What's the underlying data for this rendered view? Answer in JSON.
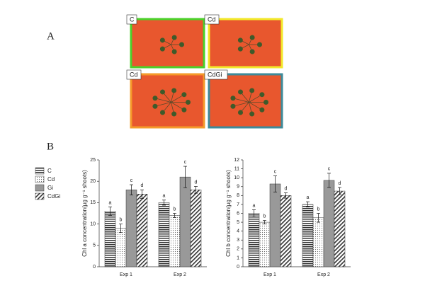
{
  "panels": [
    "A",
    "B"
  ],
  "photos": [
    {
      "label": "C",
      "border": "#4bd12a"
    },
    {
      "label": "Cd",
      "border": "#f2e82a"
    },
    {
      "label": "Cd",
      "border": "#f59a2a"
    },
    {
      "label": "CdGi",
      "border": "#3d8a9a"
    }
  ],
  "legend": [
    {
      "name": "C",
      "pattern": "horizontal-lines",
      "color": "#333333"
    },
    {
      "name": "Cd",
      "pattern": "dots",
      "color": "#666666"
    },
    {
      "name": "Gi",
      "pattern": "solid",
      "color": "#999999"
    },
    {
      "name": "CdGi",
      "pattern": "diagonal-lines",
      "color": "#333333"
    }
  ],
  "chart_data": [
    {
      "type": "bar",
      "y_label": "Chl a concentration(µg g⁻¹ shoots)",
      "categories": [
        "Exp 1",
        "Exp 2"
      ],
      "ylim": [
        0,
        25
      ],
      "yticks": [
        0,
        5,
        10,
        15,
        20,
        25
      ],
      "series": [
        {
          "values": [
            13,
            15
          ],
          "errors": [
            1,
            0.6
          ],
          "letters": [
            "a",
            "a"
          ]
        },
        {
          "values": [
            9,
            12
          ],
          "errors": [
            1,
            0.5
          ],
          "letters": [
            "b",
            "b"
          ]
        },
        {
          "values": [
            18,
            21
          ],
          "errors": [
            1.2,
            2.5
          ],
          "letters": [
            "c",
            "c"
          ]
        },
        {
          "values": [
            17,
            18
          ],
          "errors": [
            1,
            0.8
          ],
          "letters": [
            "d",
            "d"
          ]
        }
      ]
    },
    {
      "type": "bar",
      "y_label": "Chl b concentration(µg g⁻¹ shoots)",
      "categories": [
        "Exp 1",
        "Exp 2"
      ],
      "ylim": [
        0,
        12
      ],
      "yticks": [
        0,
        1,
        2,
        3,
        4,
        5,
        6,
        7,
        8,
        9,
        10,
        11,
        12
      ],
      "series": [
        {
          "values": [
            6,
            7
          ],
          "errors": [
            0.4,
            0.3
          ],
          "letters": [
            "a",
            "a"
          ]
        },
        {
          "values": [
            5,
            5.5
          ],
          "errors": [
            0.2,
            0.5
          ],
          "letters": [
            "b",
            "b"
          ]
        },
        {
          "values": [
            9.3,
            9.7
          ],
          "errors": [
            0.9,
            0.8
          ],
          "letters": [
            "c",
            "c"
          ]
        },
        {
          "values": [
            8,
            8.5
          ],
          "errors": [
            0.3,
            0.4
          ],
          "letters": [
            "d",
            "d"
          ]
        }
      ]
    }
  ]
}
